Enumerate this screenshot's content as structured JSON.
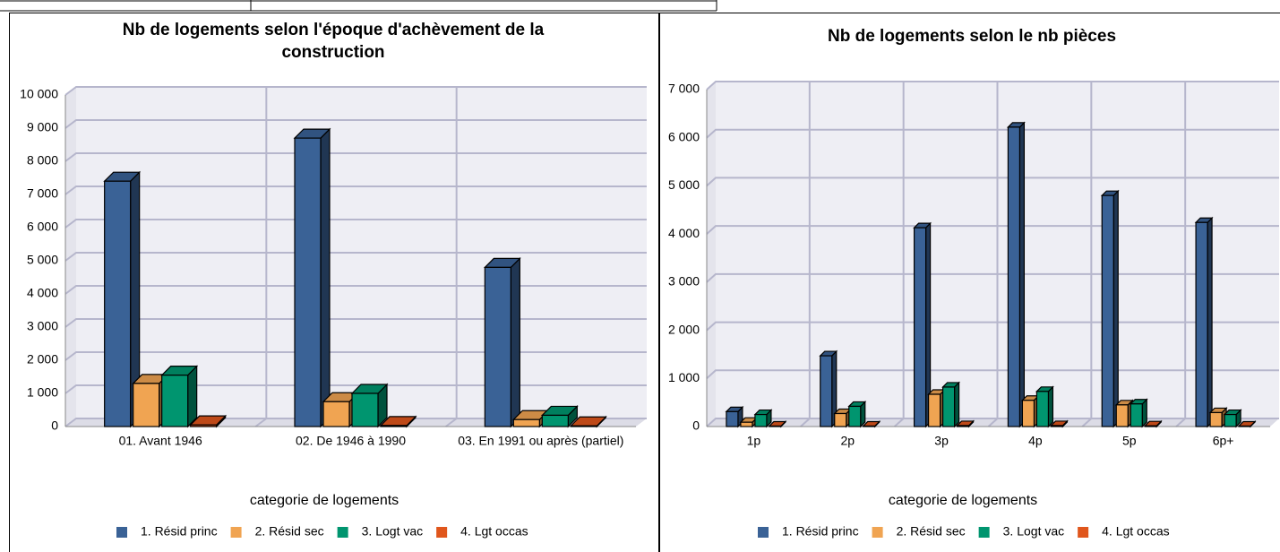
{
  "chart_data": [
    {
      "type": "bar",
      "title": "Nb de logements selon l'époque d'achèvement de la construction",
      "xlabel": "categorie de logements",
      "categories": [
        "01. Avant 1946",
        "02. De 1946 à 1990",
        "03. En 1991 ou après (partiel)"
      ],
      "series": [
        {
          "name": "1. Résid princ",
          "color": "#3a6296",
          "values": [
            7400,
            8700,
            4800
          ]
        },
        {
          "name": "2. Résid sec",
          "color": "#f0a452",
          "values": [
            1300,
            750,
            210
          ]
        },
        {
          "name": "3. Logt vac",
          "color": "#00956f",
          "values": [
            1550,
            1000,
            340
          ]
        },
        {
          "name": "4. Lgt occas",
          "color": "#e0561c",
          "values": [
            50,
            30,
            20
          ]
        }
      ],
      "ylim": [
        0,
        10000
      ],
      "yticks": [
        0,
        {
          "value": 1000,
          "label": "1 000"
        },
        {
          "value": 2000,
          "label": "2 000"
        },
        {
          "value": 3000,
          "label": "3 000"
        },
        {
          "value": 4000,
          "label": "4 000"
        },
        {
          "value": 5000,
          "label": "5 000"
        },
        {
          "value": 6000,
          "label": "6 000"
        },
        {
          "value": 7000,
          "label": "7 000"
        },
        {
          "value": 8000,
          "label": "8 000"
        },
        {
          "value": 9000,
          "label": "9 000"
        },
        {
          "value": 10000,
          "label": "10 000"
        }
      ],
      "grid": true
    },
    {
      "type": "bar",
      "title": "Nb de logements selon le nb pièces",
      "xlabel": "categorie de logements",
      "categories": [
        "1p",
        "2p",
        "3p",
        "4p",
        "5p",
        "6p+"
      ],
      "series": [
        {
          "name": "1. Résid princ",
          "color": "#3a6296",
          "values": [
            310,
            1470,
            4130,
            6220,
            4800,
            4240
          ]
        },
        {
          "name": "2. Résid sec",
          "color": "#f0a452",
          "values": [
            90,
            270,
            670,
            545,
            450,
            290
          ]
        },
        {
          "name": "3. Logt vac",
          "color": "#00956f",
          "values": [
            250,
            420,
            820,
            730,
            470,
            250
          ]
        },
        {
          "name": "4. Lgt occas",
          "color": "#e0561c",
          "values": [
            10,
            10,
            20,
            20,
            15,
            10
          ]
        }
      ],
      "ylim": [
        0,
        7000
      ],
      "yticks": [
        0,
        {
          "value": 1000,
          "label": "1 000"
        },
        {
          "value": 2000,
          "label": "2 000"
        },
        {
          "value": 3000,
          "label": "3 000"
        },
        {
          "value": 4000,
          "label": "4 000"
        },
        {
          "value": 5000,
          "label": "5 000"
        },
        {
          "value": 6000,
          "label": "6 000"
        },
        {
          "value": 7000,
          "label": "7 000"
        }
      ],
      "grid": true
    }
  ]
}
